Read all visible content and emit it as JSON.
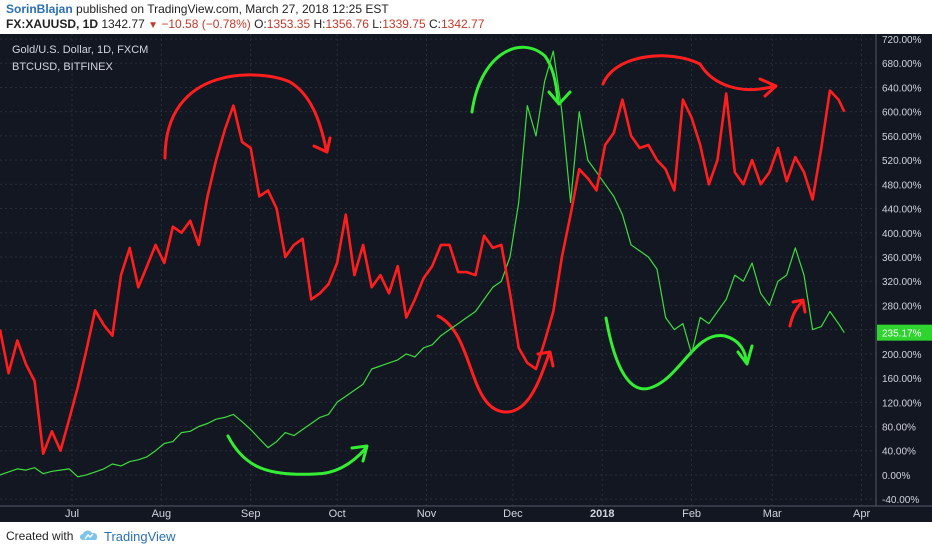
{
  "header": {
    "author": "SorinBlajan",
    "published_text": "published on TradingView.com, March 27, 2018 12:25 EST",
    "symbol": "FX:XAUUSD, 1D",
    "last": "1342.77",
    "change": "−10.58 (−0.78%)",
    "ohlc": [
      {
        "k": "O:",
        "v": "1353.35"
      },
      {
        "k": "H:",
        "v": "1356.76"
      },
      {
        "k": "L:",
        "v": "1339.75"
      },
      {
        "k": "C:",
        "v": "1342.77"
      }
    ]
  },
  "footer": {
    "created_with": "Created with",
    "brand": "TradingView"
  },
  "chart_data": {
    "type": "line",
    "legend": [
      "Gold/U.S. Dollar, 1D, FXCM",
      "BTCUSD, BITFINEX"
    ],
    "y_ticks": [
      -40,
      0,
      40,
      80,
      120,
      160,
      200,
      240,
      280,
      320,
      360,
      400,
      440,
      480,
      520,
      560,
      600,
      640,
      680,
      720
    ],
    "y_tick_suffix": ".00%",
    "ylim": [
      -48,
      725
    ],
    "x_range": [
      "2017-06-06",
      "2018-04-06"
    ],
    "x_ticks": [
      {
        "date": "2017-07-01",
        "label": "Jul"
      },
      {
        "date": "2017-08-01",
        "label": "Aug"
      },
      {
        "date": "2017-09-01",
        "label": "Sep"
      },
      {
        "date": "2017-10-01",
        "label": "Oct"
      },
      {
        "date": "2017-11-01",
        "label": "Nov"
      },
      {
        "date": "2017-12-01",
        "label": "Dec"
      },
      {
        "date": "2018-01-01",
        "label": "2018"
      },
      {
        "date": "2018-02-01",
        "label": "Feb"
      },
      {
        "date": "2018-03-01",
        "label": "Mar"
      },
      {
        "date": "2018-04-01",
        "label": "Apr"
      }
    ],
    "last_value_label": "235.17%",
    "colors": {
      "gold": "#ff1e1e",
      "btc": "#3edb3e",
      "annotation_red": "#ff1e1e",
      "annotation_green": "#33ee33",
      "label_bg": "#2fd42f"
    },
    "series": [
      {
        "name": "Gold/U.S. Dollar, 1D, FXCM",
        "x": [
          "2017-06-06",
          "2017-06-09",
          "2017-06-12",
          "2017-06-15",
          "2017-06-18",
          "2017-06-21",
          "2017-06-24",
          "2017-06-27",
          "2017-06-30",
          "2017-07-03",
          "2017-07-06",
          "2017-07-09",
          "2017-07-12",
          "2017-07-15",
          "2017-07-18",
          "2017-07-21",
          "2017-07-24",
          "2017-07-27",
          "2017-07-30",
          "2017-08-02",
          "2017-08-05",
          "2017-08-08",
          "2017-08-11",
          "2017-08-14",
          "2017-08-17",
          "2017-08-20",
          "2017-08-23",
          "2017-08-26",
          "2017-08-29",
          "2017-09-01",
          "2017-09-04",
          "2017-09-07",
          "2017-09-10",
          "2017-09-13",
          "2017-09-16",
          "2017-09-19",
          "2017-09-22",
          "2017-09-25",
          "2017-09-28",
          "2017-10-01",
          "2017-10-04",
          "2017-10-07",
          "2017-10-10",
          "2017-10-13",
          "2017-10-16",
          "2017-10-19",
          "2017-10-22",
          "2017-10-25",
          "2017-10-28",
          "2017-10-31",
          "2017-11-03",
          "2017-11-06",
          "2017-11-09",
          "2017-11-12",
          "2017-11-15",
          "2017-11-18",
          "2017-11-21",
          "2017-11-24",
          "2017-11-27",
          "2017-11-30",
          "2017-12-03",
          "2017-12-06",
          "2017-12-09",
          "2017-12-12",
          "2017-12-15",
          "2017-12-18",
          "2017-12-21",
          "2017-12-24",
          "2017-12-27",
          "2017-12-30",
          "2018-01-02",
          "2018-01-05",
          "2018-01-08",
          "2018-01-11",
          "2018-01-14",
          "2018-01-17",
          "2018-01-20",
          "2018-01-23",
          "2018-01-26",
          "2018-01-29",
          "2018-02-01",
          "2018-02-04",
          "2018-02-07",
          "2018-02-10",
          "2018-02-13",
          "2018-02-16",
          "2018-02-19",
          "2018-02-22",
          "2018-02-25",
          "2018-02-28",
          "2018-03-03",
          "2018-03-06",
          "2018-03-09",
          "2018-03-12",
          "2018-03-15",
          "2018-03-18",
          "2018-03-21",
          "2018-03-24",
          "2018-03-26"
        ],
        "y": [
          240,
          168,
          222,
          183,
          155,
          35,
          72,
          40,
          92,
          145,
          206,
          272,
          248,
          230,
          330,
          375,
          310,
          345,
          380,
          350,
          410,
          400,
          420,
          380,
          460,
          520,
          570,
          610,
          550,
          540,
          460,
          470,
          440,
          360,
          380,
          390,
          290,
          300,
          315,
          350,
          430,
          330,
          380,
          310,
          330,
          300,
          345,
          260,
          290,
          325,
          345,
          380,
          380,
          335,
          335,
          330,
          395,
          375,
          380,
          300,
          210,
          185,
          175,
          220,
          270,
          360,
          430,
          505,
          490,
          470,
          545,
          565,
          620,
          560,
          540,
          545,
          520,
          505,
          470,
          620,
          590,
          545,
          480,
          520,
          630,
          500,
          480,
          520,
          480,
          500,
          540,
          485,
          525,
          500,
          455,
          540,
          635,
          620,
          600
        ]
      },
      {
        "name": "BTCUSD, BITFINEX",
        "x": [
          "2017-06-06",
          "2017-06-09",
          "2017-06-12",
          "2017-06-15",
          "2017-06-18",
          "2017-06-21",
          "2017-06-24",
          "2017-06-27",
          "2017-06-30",
          "2017-07-03",
          "2017-07-06",
          "2017-07-09",
          "2017-07-12",
          "2017-07-15",
          "2017-07-18",
          "2017-07-21",
          "2017-07-24",
          "2017-07-27",
          "2017-07-30",
          "2017-08-02",
          "2017-08-05",
          "2017-08-08",
          "2017-08-11",
          "2017-08-14",
          "2017-08-17",
          "2017-08-20",
          "2017-08-23",
          "2017-08-26",
          "2017-08-29",
          "2017-09-01",
          "2017-09-04",
          "2017-09-07",
          "2017-09-10",
          "2017-09-13",
          "2017-09-16",
          "2017-09-19",
          "2017-09-22",
          "2017-09-25",
          "2017-09-28",
          "2017-10-01",
          "2017-10-04",
          "2017-10-07",
          "2017-10-10",
          "2017-10-13",
          "2017-10-16",
          "2017-10-19",
          "2017-10-22",
          "2017-10-25",
          "2017-10-28",
          "2017-10-31",
          "2017-11-03",
          "2017-11-06",
          "2017-11-09",
          "2017-11-12",
          "2017-11-15",
          "2017-11-18",
          "2017-11-21",
          "2017-11-24",
          "2017-11-27",
          "2017-11-30",
          "2017-12-03",
          "2017-12-06",
          "2017-12-09",
          "2017-12-12",
          "2017-12-15",
          "2017-12-18",
          "2017-12-21",
          "2017-12-24",
          "2017-12-27",
          "2017-12-30",
          "2018-01-02",
          "2018-01-05",
          "2018-01-08",
          "2018-01-11",
          "2018-01-14",
          "2018-01-17",
          "2018-01-20",
          "2018-01-23",
          "2018-01-26",
          "2018-01-29",
          "2018-02-01",
          "2018-02-04",
          "2018-02-07",
          "2018-02-10",
          "2018-02-13",
          "2018-02-16",
          "2018-02-19",
          "2018-02-22",
          "2018-02-25",
          "2018-02-28",
          "2018-03-03",
          "2018-03-06",
          "2018-03-09",
          "2018-03-12",
          "2018-03-15",
          "2018-03-18",
          "2018-03-21",
          "2018-03-24",
          "2018-03-26"
        ],
        "y": [
          0,
          5,
          10,
          8,
          12,
          2,
          6,
          8,
          10,
          -3,
          0,
          5,
          10,
          18,
          15,
          22,
          25,
          30,
          40,
          52,
          55,
          70,
          72,
          80,
          85,
          92,
          95,
          100,
          88,
          75,
          60,
          45,
          55,
          70,
          65,
          75,
          85,
          95,
          100,
          120,
          130,
          140,
          150,
          175,
          180,
          185,
          190,
          200,
          195,
          210,
          215,
          230,
          240,
          250,
          260,
          270,
          290,
          310,
          320,
          360,
          450,
          610,
          560,
          650,
          700,
          600,
          450,
          600,
          520,
          500,
          480,
          460,
          430,
          380,
          370,
          360,
          340,
          260,
          240,
          250,
          200,
          260,
          250,
          270,
          290,
          330,
          320,
          350,
          300,
          280,
          320,
          330,
          375,
          330,
          240,
          245,
          270,
          250,
          235
        ]
      }
    ]
  }
}
